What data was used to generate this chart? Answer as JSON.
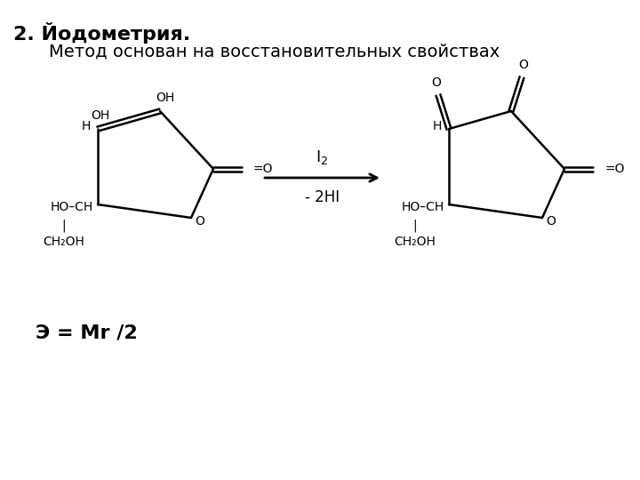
{
  "title": "2. Йодометрия.",
  "subtitle": "Метод основан на восстановительных свойствах",
  "title_fontsize": 16,
  "subtitle_fontsize": 14,
  "background_color": "#ffffff",
  "text_color": "#000000",
  "line_color": "#000000",
  "equiv_formula": "Э = Mr /2"
}
